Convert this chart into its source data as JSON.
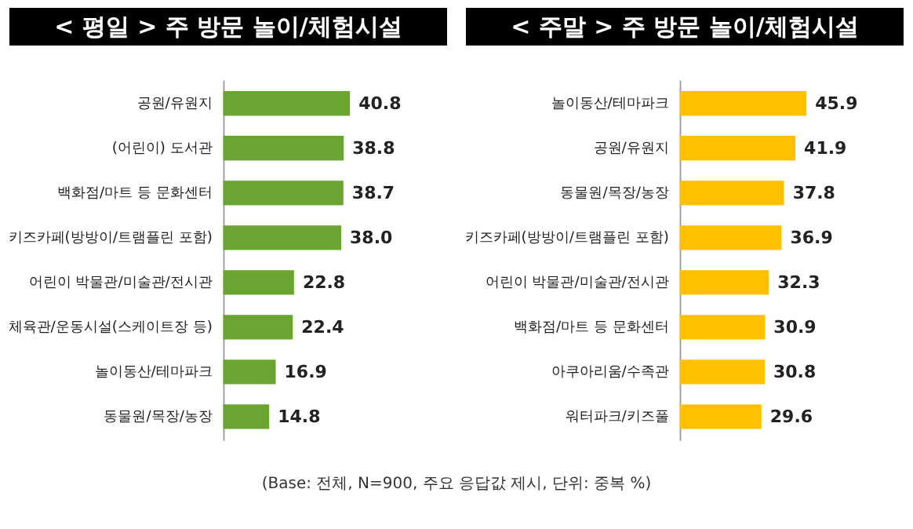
{
  "chart_data": [
    {
      "type": "bar",
      "orientation": "horizontal",
      "title": "< 평일 > 주 방문 놀이/체험시설",
      "categories": [
        "공원/유원지",
        "(어린이) 도서관",
        "백화점/마트 등 문화센터",
        "키즈카페(방방이/트램플린 포함)",
        "어린이 박물관/미술관/전시관",
        "체육관/운동시설(스케이트장 등)",
        "놀이동산/테마파크",
        "동물원/목장/농장"
      ],
      "values": [
        40.8,
        38.8,
        38.7,
        38.0,
        22.8,
        22.4,
        16.9,
        14.8
      ],
      "color": "#6aa531",
      "value_labels": [
        "40.8",
        "38.8",
        "38.7",
        "38.0",
        "22.8",
        "22.4",
        "16.9",
        "14.8"
      ]
    },
    {
      "type": "bar",
      "orientation": "horizontal",
      "title": "< 주말 > 주 방문 놀이/체험시설",
      "categories": [
        "놀이동산/테마파크",
        "공원/유원지",
        "동물원/목장/농장",
        "키즈카페(방방이/트램플린 포함)",
        "어린이 박물관/미술관/전시관",
        "백화점/마트 등 문화센터",
        "아쿠아리움/수족관",
        "워터파크/키즈풀"
      ],
      "values": [
        45.9,
        41.9,
        37.8,
        36.9,
        32.3,
        30.9,
        30.8,
        29.6
      ],
      "color": "#ffc000",
      "value_labels": [
        "45.9",
        "41.9",
        "37.8",
        "36.9",
        "32.3",
        "30.9",
        "30.8",
        "29.6"
      ],
      "annotations": [
        "(Base: 전체, N=900, 주요 응답값 제시, 단위: 중복 %)"
      ]
    }
  ]
}
